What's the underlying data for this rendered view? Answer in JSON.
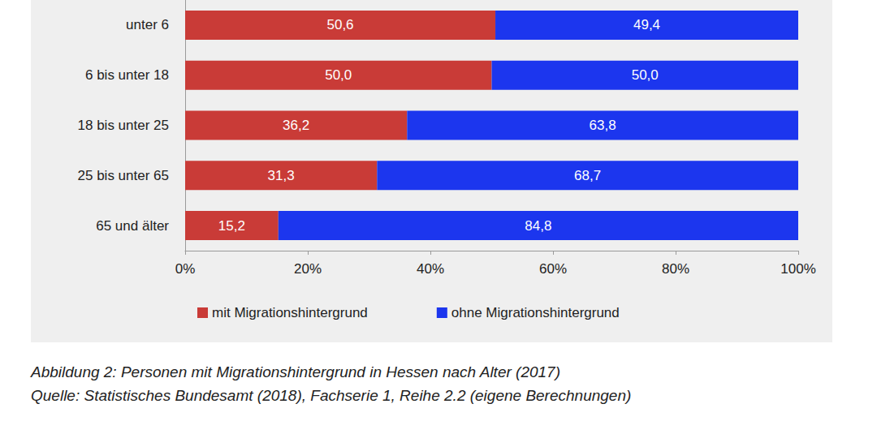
{
  "chart_data": {
    "type": "bar",
    "orientation": "horizontal",
    "stacked": true,
    "data_labels": true,
    "grid": false,
    "legend": "bottom",
    "categories": [
      "unter 6",
      "6 bis unter 18",
      "18 bis unter 25",
      "25 bis unter 65",
      "65 und älter"
    ],
    "series": [
      {
        "name": "mit Migrationshintergrund",
        "color": "#c93b37",
        "values": [
          50.6,
          50.0,
          36.2,
          31.3,
          15.2
        ],
        "value_labels": [
          "50,6",
          "50,0",
          "36,2",
          "31,3",
          "15,2"
        ]
      },
      {
        "name": "ohne Migrationshintergrund",
        "color": "#1c36ee",
        "values": [
          49.4,
          50.0,
          63.8,
          68.7,
          84.8
        ],
        "value_labels": [
          "49,4",
          "50,0",
          "63,8",
          "68,7",
          "84,8"
        ]
      }
    ],
    "xlim": [
      0,
      100
    ],
    "xticks": [
      {
        "value": 0,
        "label": "0%"
      },
      {
        "value": 20,
        "label": "20%"
      },
      {
        "value": 40,
        "label": "40%"
      },
      {
        "value": 60,
        "label": "60%"
      },
      {
        "value": 80,
        "label": "80%"
      },
      {
        "value": 100,
        "label": "100%"
      }
    ],
    "caption": [
      "Abbildung 2: Personen mit Migrationshintergrund in Hessen nach Alter (2017)",
      "Quelle: Statistisches Bundesamt (2018), Fachserie 1, Reihe 2.2 (eigene Berechnungen)"
    ]
  }
}
